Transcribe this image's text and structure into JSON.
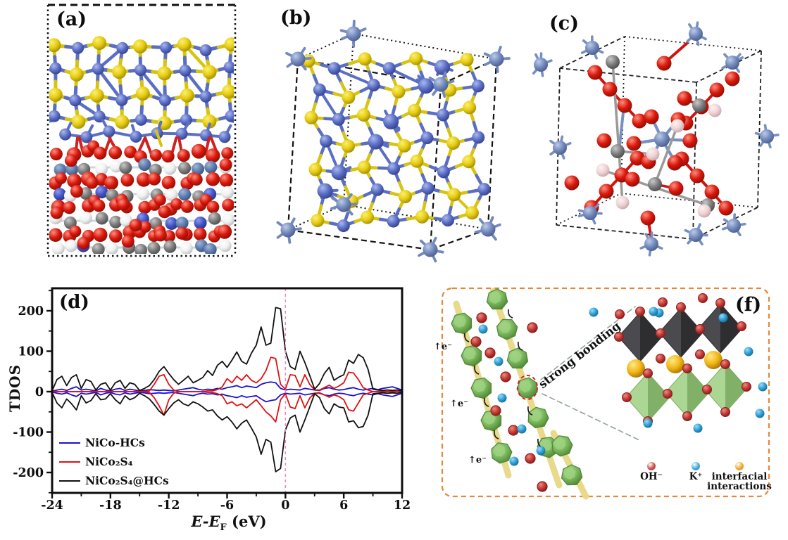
{
  "panels": {
    "a": {
      "label": "(a)"
    },
    "b": {
      "label": "(b)"
    },
    "c": {
      "label": "(c)"
    },
    "d": {
      "label": "(d)"
    },
    "f": {
      "label": "(f)"
    }
  },
  "atom_colors": {
    "sulfur": "#e6cb12",
    "nickel_cobalt": "#5a6ec4",
    "metal_frame": "#7289bd",
    "oxygen": "#d8180c",
    "carbon": "#7d7d7d",
    "hydrogen": "#f1f1f1",
    "hydrogen_pink": "#eed4d6"
  },
  "schematic": {
    "label": "(f)",
    "strong_bonding_text": "strong bonding",
    "electron_label": "↑e⁻",
    "border_color": "#e2893c",
    "chain_green": "#7cb85e",
    "rod_yellow": "#e9d98a",
    "black_octahedron": "#3c3c40",
    "green_octahedron": "#8fc173",
    "bonding_line_color": "#93a393",
    "circle_color": "#e02020",
    "legend": [
      {
        "label": "OH⁻",
        "lines": [
          "OH⁻"
        ],
        "color": "#c43b37"
      },
      {
        "label": "K⁺",
        "lines": [
          "K⁺"
        ],
        "color": "#2f9fd6"
      },
      {
        "label": "interfacial interactions",
        "lines": [
          "interfacial",
          "interactions"
        ],
        "color": "#f0a017"
      }
    ]
  },
  "chart_data": {
    "type": "line",
    "title": "(d)",
    "ylabel": "TDOS",
    "xlabel": "E-EF (eV)",
    "xlabel_display": {
      "main": "E-E",
      "sub": "F",
      "unit": " (eV)"
    },
    "xlim": [
      -24,
      12
    ],
    "ylim": [
      -250,
      255
    ],
    "x_ticks": [
      -24,
      -18,
      -12,
      -6,
      0,
      6,
      12
    ],
    "y_ticks": [
      200,
      100,
      0,
      -100,
      -200
    ],
    "grid": false,
    "legend_position": "lower left",
    "fermi_level_x": 0,
    "fermi_line_color": "#f17fc7",
    "x": [
      -24,
      -23.5,
      -23,
      -22.5,
      -22,
      -21.5,
      -21,
      -20.5,
      -20,
      -19.5,
      -19,
      -18.5,
      -18,
      -17.5,
      -17,
      -16.5,
      -16,
      -15.5,
      -15,
      -14.5,
      -14,
      -13.5,
      -13,
      -12.5,
      -12,
      -11.5,
      -11,
      -10.5,
      -10,
      -9.5,
      -9,
      -8.5,
      -8,
      -7.5,
      -7,
      -6.5,
      -6,
      -5.5,
      -5,
      -4.5,
      -4,
      -3.5,
      -3,
      -2.5,
      -2,
      -1.5,
      -1,
      -0.5,
      0,
      0.5,
      1,
      1.5,
      2,
      2.5,
      3,
      3.5,
      4,
      4.5,
      5,
      5.5,
      6,
      6.5,
      7,
      7.5,
      8,
      8.5,
      9,
      9.5,
      10,
      10.5,
      11,
      11.5,
      12
    ],
    "series": [
      {
        "name": "NiCo-HCs",
        "color": "#1812cf",
        "spin_up": [
          1,
          4,
          6,
          3,
          8,
          12,
          4,
          6,
          4,
          2,
          8,
          4,
          2,
          6,
          8,
          3,
          6,
          4,
          2,
          3,
          5,
          4,
          3,
          4,
          3,
          2,
          4,
          6,
          8,
          10,
          6,
          4,
          6,
          5,
          8,
          6,
          10,
          12,
          15,
          10,
          14,
          12,
          10,
          18,
          22,
          24,
          22,
          8,
          4,
          6,
          5,
          4,
          8,
          6,
          4,
          3,
          8,
          10,
          6,
          4,
          5,
          8,
          10,
          6,
          4,
          6,
          8,
          5,
          8,
          10,
          12,
          8,
          4
        ],
        "spin_down": [
          -1,
          -4,
          -6,
          -3,
          -8,
          -12,
          -4,
          -6,
          -4,
          -2,
          -8,
          -4,
          -2,
          -6,
          -8,
          -3,
          -6,
          -4,
          -2,
          -3,
          -5,
          -4,
          -3,
          -4,
          -3,
          -2,
          -4,
          -6,
          -8,
          -10,
          -6,
          -4,
          -6,
          -5,
          -8,
          -6,
          -10,
          -12,
          -15,
          -10,
          -14,
          -12,
          -10,
          -18,
          -25,
          -22,
          -20,
          -8,
          -4,
          -6,
          -5,
          -4,
          -8,
          -6,
          -4,
          -3,
          -8,
          -10,
          -6,
          -4,
          -5,
          -8,
          -10,
          -6,
          -4,
          -6,
          -8,
          -5,
          -8,
          -10,
          -12,
          -8,
          -4
        ]
      },
      {
        "name": "NiCo₂S₄",
        "color": "#e01111",
        "spin_up": [
          0,
          0,
          0,
          0,
          0,
          0,
          0,
          0,
          0,
          0,
          0,
          0,
          0,
          0,
          0,
          0,
          0,
          0,
          0,
          0,
          2,
          18,
          38,
          42,
          18,
          4,
          0,
          0,
          0,
          0,
          0,
          0,
          2,
          2,
          5,
          12,
          32,
          22,
          38,
          28,
          42,
          28,
          22,
          32,
          52,
          85,
          82,
          18,
          6,
          42,
          40,
          12,
          42,
          18,
          4,
          4,
          10,
          16,
          8,
          14,
          22,
          48,
          46,
          30,
          10,
          4,
          0,
          0,
          0,
          0,
          0,
          0,
          0
        ],
        "spin_down": [
          0,
          0,
          0,
          0,
          0,
          0,
          0,
          0,
          0,
          0,
          0,
          0,
          0,
          0,
          0,
          0,
          0,
          0,
          0,
          0,
          -2,
          -15,
          -35,
          -58,
          -20,
          -4,
          0,
          0,
          0,
          0,
          0,
          0,
          -2,
          -2,
          -5,
          -10,
          -30,
          -25,
          -35,
          -30,
          -40,
          -30,
          -20,
          -35,
          -50,
          -60,
          -75,
          -20,
          -5,
          -38,
          -42,
          -10,
          -40,
          -16,
          -4,
          -4,
          -8,
          -14,
          -8,
          -12,
          -20,
          -45,
          -48,
          -28,
          -8,
          -4,
          0,
          0,
          0,
          0,
          0,
          0,
          0
        ]
      },
      {
        "name": "NiCo₂S₄@HCs",
        "color": "#111111",
        "spin_up": [
          2,
          30,
          38,
          15,
          35,
          42,
          8,
          30,
          25,
          4,
          18,
          22,
          4,
          22,
          28,
          8,
          22,
          18,
          3,
          8,
          15,
          30,
          50,
          62,
          45,
          30,
          18,
          28,
          38,
          22,
          28,
          35,
          52,
          40,
          65,
          75,
          60,
          78,
          98,
          75,
          68,
          95,
          115,
          160,
          115,
          120,
          208,
          205,
          100,
          62,
          55,
          100,
          72,
          40,
          6,
          20,
          45,
          60,
          28,
          36,
          42,
          78,
          70,
          92,
          84,
          55,
          6,
          4,
          3,
          4,
          3,
          4,
          2
        ],
        "spin_down": [
          -2,
          -28,
          -40,
          -18,
          -30,
          -45,
          -10,
          -28,
          -22,
          -5,
          -20,
          -18,
          -5,
          -20,
          -30,
          -10,
          -20,
          -15,
          -4,
          -10,
          -18,
          -32,
          -48,
          -58,
          -42,
          -28,
          -20,
          -30,
          -35,
          -25,
          -30,
          -38,
          -48,
          -45,
          -60,
          -70,
          -62,
          -75,
          -92,
          -78,
          -70,
          -90,
          -112,
          -155,
          -118,
          -125,
          -198,
          -190,
          -95,
          -65,
          -58,
          -100,
          -70,
          -38,
          -5,
          -15,
          -42,
          -55,
          -30,
          -38,
          -40,
          -75,
          -72,
          -89,
          -86,
          -58,
          -5,
          -4,
          -3,
          -4,
          -3,
          -4,
          -2
        ]
      }
    ]
  }
}
